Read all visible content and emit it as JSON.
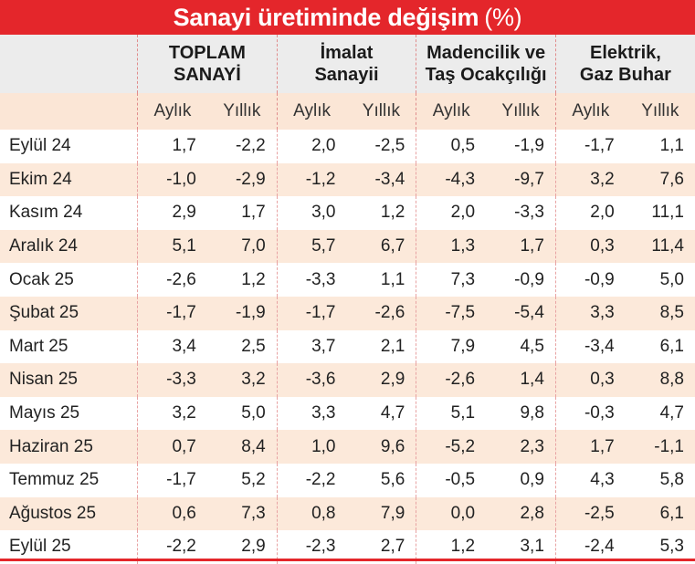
{
  "title": {
    "text": "Sanayi üretiminde değişim",
    "unit": "(%)"
  },
  "colors": {
    "title_bg": "#e4262b",
    "header_bg": "#ececec",
    "stripe": "#fce9da"
  },
  "chart_data": {
    "type": "table",
    "groups": [
      {
        "label_line1": "TOPLAM",
        "label_line2": "SANAYİ"
      },
      {
        "label_line1": "İmalat",
        "label_line2": "Sanayii"
      },
      {
        "label_line1": "Madencilik ve",
        "label_line2": "Taş Ocakçılığı"
      },
      {
        "label_line1": "Elektrik,",
        "label_line2": "Gaz Buhar"
      }
    ],
    "subheaders": [
      "Aylık",
      "Yıllık",
      "Aylık",
      "Yıllık",
      "Aylık",
      "Yıllık",
      "Aylık",
      "Yıllık"
    ],
    "rows": [
      {
        "label": "Eylül 24",
        "values": [
          "1,7",
          "-2,2",
          "2,0",
          "-2,5",
          "0,5",
          "-1,9",
          "-1,7",
          "1,1"
        ]
      },
      {
        "label": "Ekim 24",
        "values": [
          "-1,0",
          "-2,9",
          "-1,2",
          "-3,4",
          "-4,3",
          "-9,7",
          "3,2",
          "7,6"
        ]
      },
      {
        "label": "Kasım 24",
        "values": [
          "2,9",
          "1,7",
          "3,0",
          "1,2",
          "2,0",
          "-3,3",
          "2,0",
          "11,1"
        ]
      },
      {
        "label": "Aralık 24",
        "values": [
          "5,1",
          "7,0",
          "5,7",
          "6,7",
          "1,3",
          "1,7",
          "0,3",
          "11,4"
        ]
      },
      {
        "label": "Ocak 25",
        "values": [
          "-2,6",
          "1,2",
          "-3,3",
          "1,1",
          "7,3",
          "-0,9",
          "-0,9",
          "5,0"
        ]
      },
      {
        "label": "Şubat 25",
        "values": [
          "-1,7",
          "-1,9",
          "-1,7",
          "-2,6",
          "-7,5",
          "-5,4",
          "3,3",
          "8,5"
        ]
      },
      {
        "label": "Mart 25",
        "values": [
          "3,4",
          "2,5",
          "3,7",
          "2,1",
          "7,9",
          "4,5",
          "-3,4",
          "6,1"
        ]
      },
      {
        "label": "Nisan 25",
        "values": [
          "-3,3",
          "3,2",
          "-3,6",
          "2,9",
          "-2,6",
          "1,4",
          "0,3",
          "8,8"
        ]
      },
      {
        "label": "Mayıs 25",
        "values": [
          "3,2",
          "5,0",
          "3,3",
          "4,7",
          "5,1",
          "9,8",
          "-0,3",
          "4,7"
        ]
      },
      {
        "label": "Haziran 25",
        "values": [
          "0,7",
          "8,4",
          "1,0",
          "9,6",
          "-5,2",
          "2,3",
          "1,7",
          "-1,1"
        ]
      },
      {
        "label": "Temmuz 25",
        "values": [
          "-1,7",
          "5,2",
          "-2,2",
          "5,6",
          "-0,5",
          "0,9",
          "4,3",
          "5,8"
        ]
      },
      {
        "label": "Ağustos 25",
        "values": [
          "0,6",
          "7,3",
          "0,8",
          "7,9",
          "0,0",
          "2,8",
          "-2,5",
          "6,1"
        ]
      },
      {
        "label": "Eylül 25",
        "values": [
          "-2,2",
          "2,9",
          "-2,3",
          "2,7",
          "1,2",
          "3,1",
          "-2,4",
          "5,3"
        ]
      }
    ]
  }
}
